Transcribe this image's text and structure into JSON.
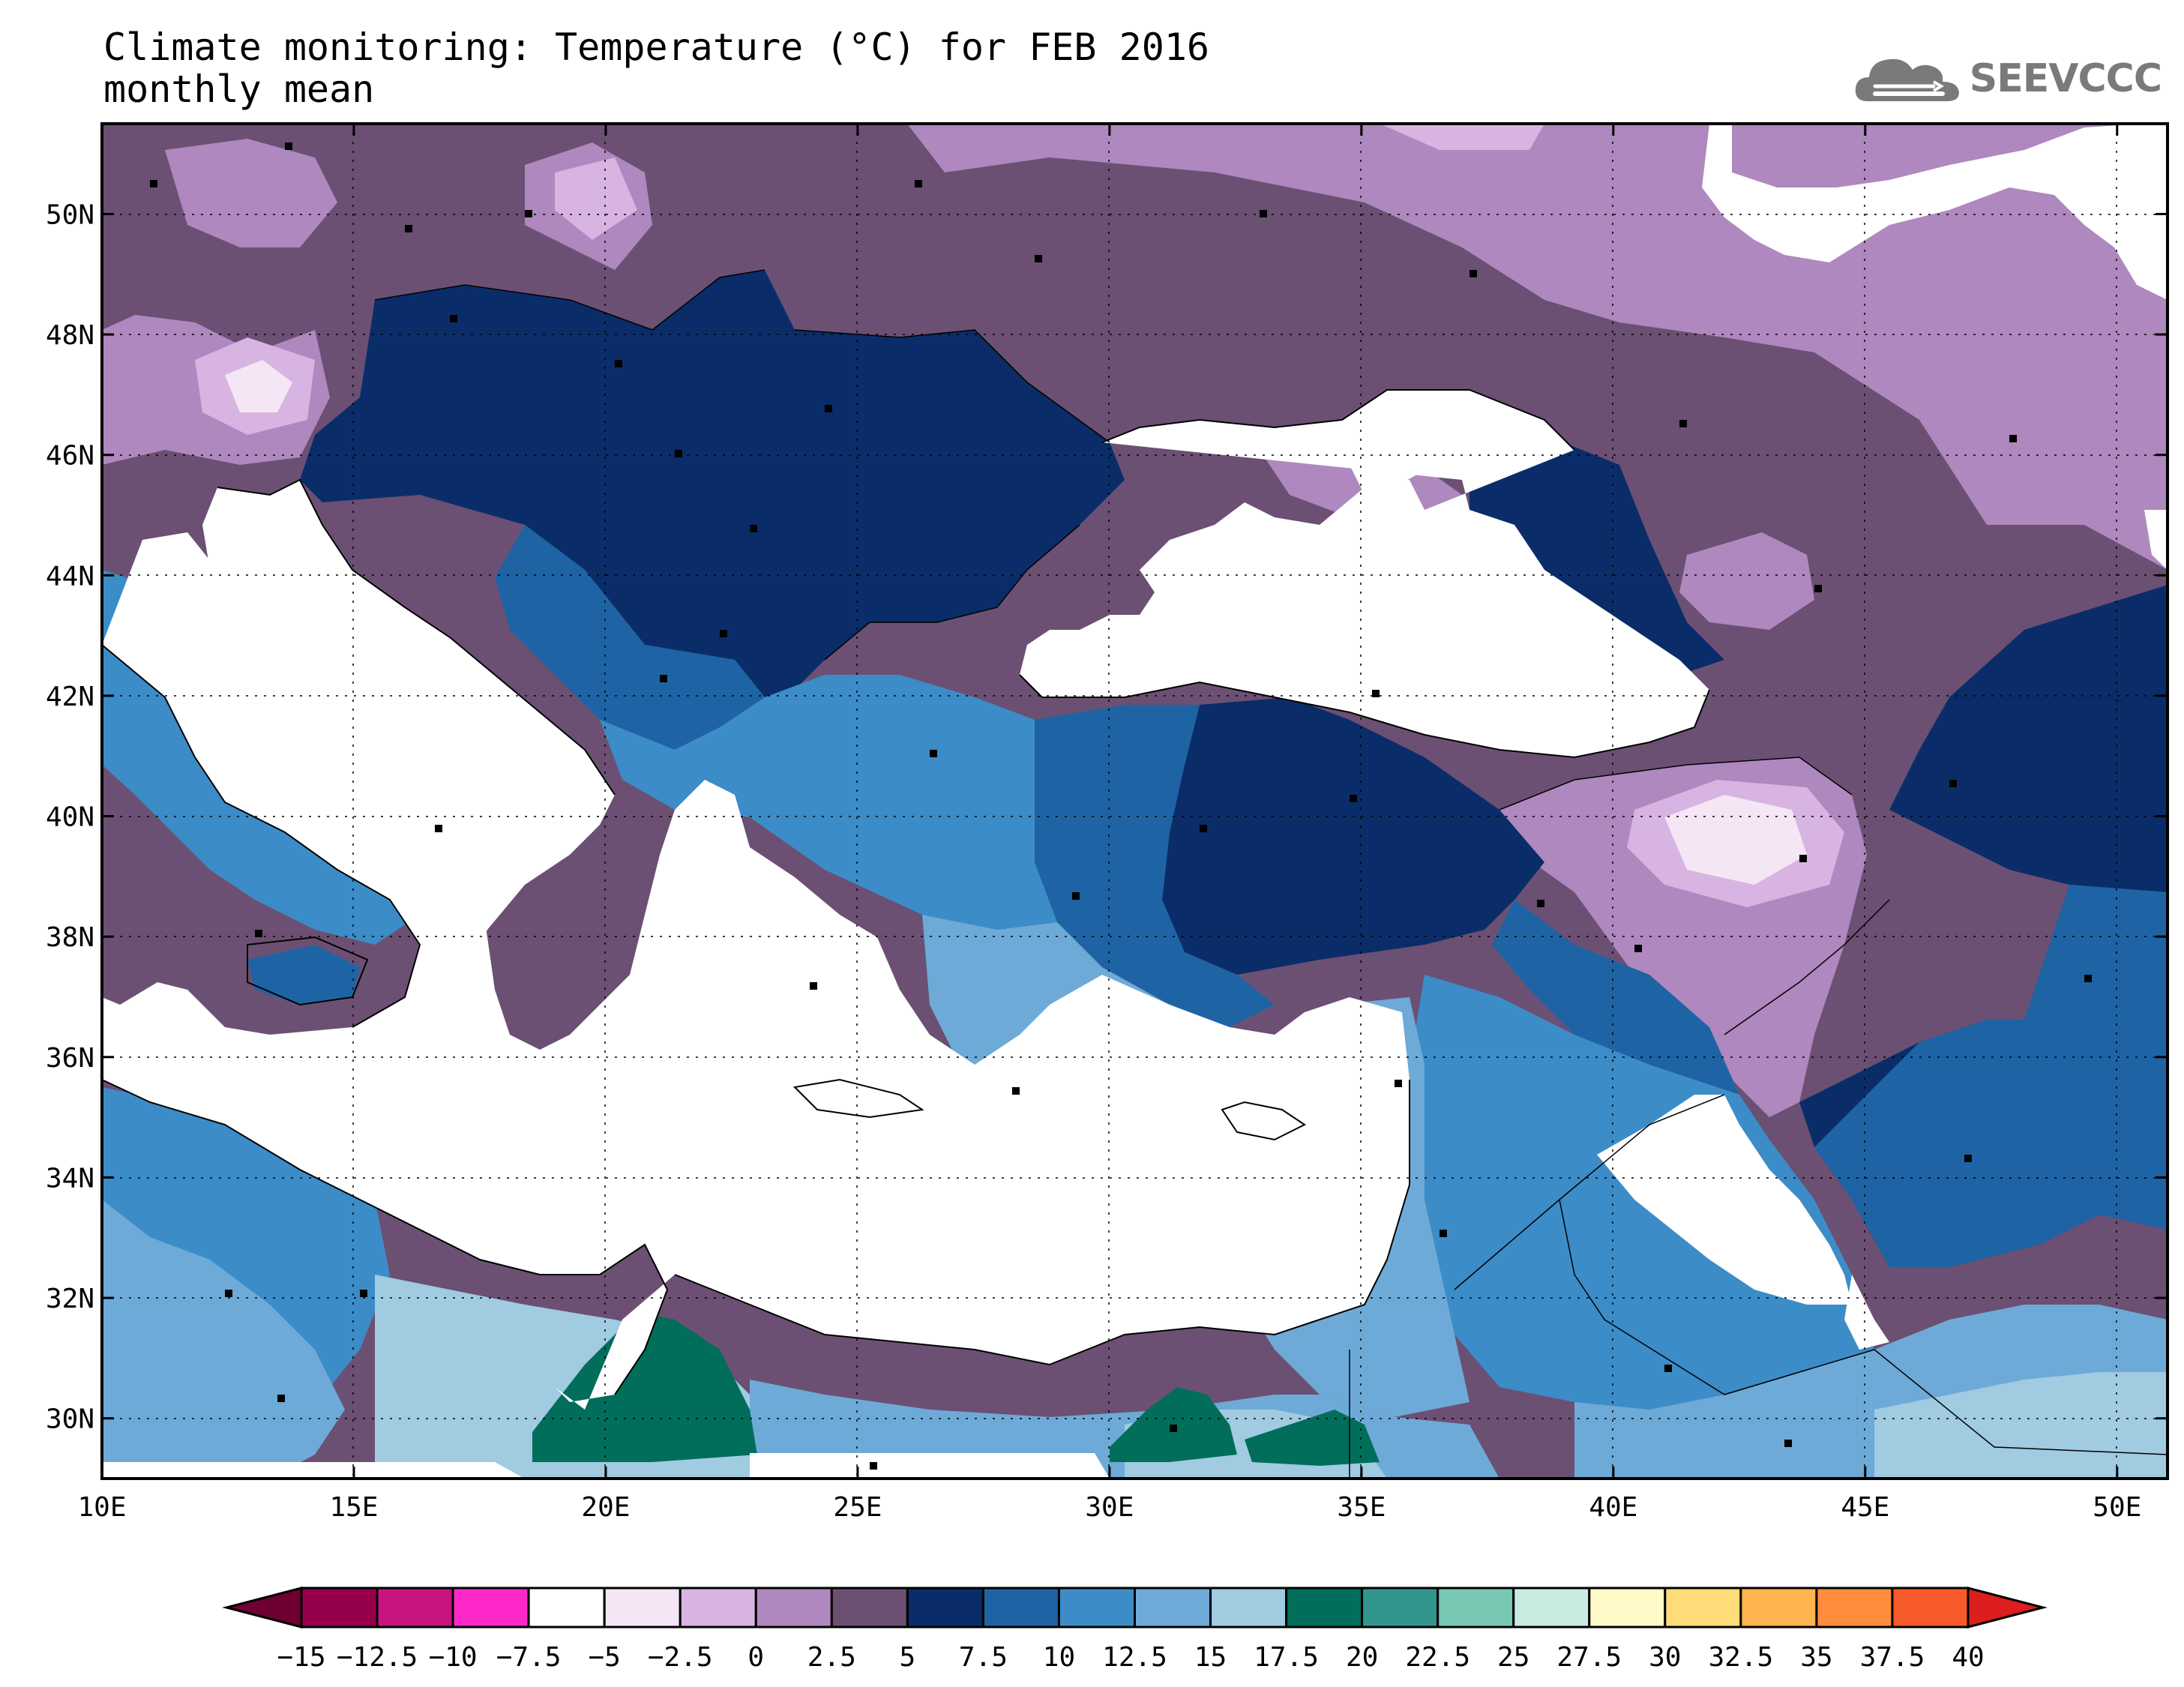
{
  "title_line1": "Climate monitoring: Temperature (°C) for FEB 2016",
  "title_line2": "monthly mean",
  "logo_text": "SEEVCCC",
  "map": {
    "lon_range": [
      10,
      51
    ],
    "lat_range": [
      29,
      51.5
    ],
    "lon_ticks": [
      "10E",
      "15E",
      "20E",
      "25E",
      "30E",
      "35E",
      "40E",
      "45E",
      "50E"
    ],
    "lat_ticks": [
      "30N",
      "32N",
      "34N",
      "36N",
      "38N",
      "40N",
      "42N",
      "44N",
      "46N",
      "48N",
      "50N"
    ]
  },
  "colorbar": {
    "labels": [
      "−15",
      "−12.5",
      "−10",
      "−7.5",
      "−5",
      "−2.5",
      "0",
      "2.5",
      "5",
      "7.5",
      "10",
      "12.5",
      "15",
      "17.5",
      "20",
      "22.5",
      "25",
      "27.5",
      "30",
      "32.5",
      "35",
      "37.5",
      "40"
    ],
    "colors": [
      "#96004b",
      "#c8147f",
      "#ff28c8",
      "#ffffff",
      "#f5e6f5",
      "#d7b4e1",
      "#ae88be",
      "#6b5073",
      "#0a2d69",
      "#1e64a5",
      "#3c8cc8",
      "#6eaad7",
      "#a0cbe1",
      "#006e5a",
      "#32968c",
      "#78c8b4",
      "#c8ebe1",
      "#fffac8",
      "#ffdc78",
      "#ffb450",
      "#ff8c3c",
      "#f55a28"
    ],
    "under_color": "#6e0032",
    "over_color": "#dc1e1e"
  }
}
